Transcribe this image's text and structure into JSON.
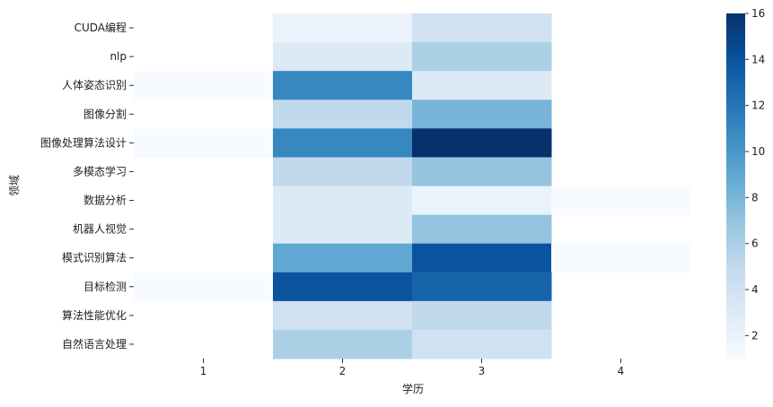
{
  "chart_data": {
    "type": "heatmap",
    "xlabel": "学历",
    "ylabel": "领域",
    "x_categories": [
      "1",
      "2",
      "3",
      "4"
    ],
    "y_categories": [
      "CUDA编程",
      "nlp",
      "人体姿态识别",
      "图像分割",
      "图像处理算法设计",
      "多模态学习",
      "数据分析",
      "机器人视觉",
      "模式识别算法",
      "目标检测",
      "算法性能优化",
      "自然语言处理"
    ],
    "values": [
      [
        null,
        2,
        4,
        null
      ],
      [
        null,
        3,
        6,
        null
      ],
      [
        1,
        11,
        3,
        null
      ],
      [
        null,
        5,
        8,
        null
      ],
      [
        1,
        11,
        16,
        null
      ],
      [
        null,
        5,
        7,
        null
      ],
      [
        null,
        3,
        2,
        1
      ],
      [
        null,
        3,
        7,
        null
      ],
      [
        null,
        9,
        14,
        1
      ],
      [
        1,
        14,
        13,
        null
      ],
      [
        null,
        4,
        5,
        null
      ],
      [
        null,
        6,
        4,
        null
      ]
    ],
    "colorbar": {
      "min": 1,
      "max": 16,
      "ticks": [
        2,
        4,
        6,
        8,
        10,
        12,
        14,
        16
      ]
    },
    "colormap": "Blues",
    "colors": [
      "#f7fbff",
      "#deebf7",
      "#c6dbef",
      "#9ecae1",
      "#6baed6",
      "#4292c6",
      "#2171b5",
      "#08519c",
      "#08306b"
    ]
  }
}
